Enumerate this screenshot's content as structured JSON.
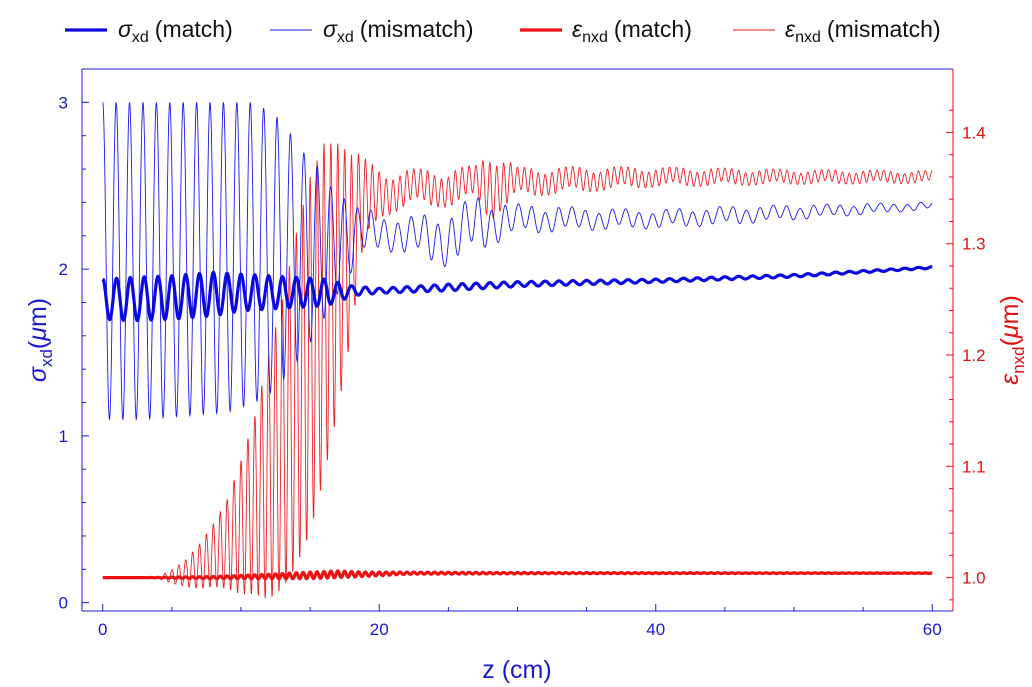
{
  "chart_data": {
    "type": "line",
    "xlabel": "z (cm)",
    "ylabel_left": {
      "sym": "σ",
      "sub": "xd",
      "rest": "(",
      "unit_sym": "μ",
      "unit_rest": "m)"
    },
    "ylabel_right": {
      "sym": "ε",
      "sub": "nxd",
      "rest": "(",
      "unit_sym": "μ",
      "unit_rest": "m)"
    },
    "xlim": [
      -1.5,
      61.5
    ],
    "ylim_left": [
      -0.05,
      3.2
    ],
    "ylim_right": [
      0.97,
      1.457
    ],
    "x_ticks": [
      "0",
      "20",
      "40",
      "60"
    ],
    "y_left_ticks": [
      "0",
      "1",
      "2",
      "3"
    ],
    "y_right_ticks": [
      "1.0",
      "1.1",
      "1.2",
      "1.3",
      "1.4"
    ],
    "colors": {
      "left_axis": "#1a1acc",
      "right_axis": "#e01010",
      "sigma": "#0a0ae0",
      "eps": "#ee1111"
    },
    "legend": [
      {
        "sym": "σ",
        "sub": "xd",
        "text": "(match)",
        "series": "sigma_match"
      },
      {
        "sym": "σ",
        "sub": "xd",
        "text": "(mismatch)",
        "series": "sigma_mismatch"
      },
      {
        "sym": "ε",
        "sub": "nxd",
        "text": "(match)",
        "series": "eps_match"
      },
      {
        "sym": "ε",
        "sub": "nxd",
        "text": "(mismatch)",
        "series": "eps_mismatch"
      }
    ],
    "series": [
      {
        "name": "sigma_match",
        "axis": "left",
        "color": "#0a0ae0",
        "thick": true,
        "x": [
          0,
          2,
          5,
          8,
          10,
          12,
          14,
          16,
          17,
          18,
          20,
          25,
          30,
          40,
          50,
          60
        ],
        "center": [
          1.82,
          1.82,
          1.83,
          1.85,
          1.86,
          1.86,
          1.86,
          1.86,
          1.86,
          1.87,
          1.87,
          1.89,
          1.91,
          1.93,
          1.96,
          2.01
        ],
        "amplitude": [
          0.12,
          0.13,
          0.13,
          0.13,
          0.11,
          0.1,
          0.09,
          0.08,
          0.06,
          0.03,
          0.015,
          0.02,
          0.015,
          0.01,
          0.008,
          0.005
        ],
        "period": 1.0
      },
      {
        "name": "sigma_mismatch",
        "axis": "left",
        "color": "#1a1aee",
        "thick": false,
        "x": [
          0,
          3,
          6,
          9,
          11,
          12.5,
          13.5,
          14.5,
          15.5,
          16.5,
          17.5,
          18.5,
          20,
          22,
          25,
          27,
          30,
          35,
          40,
          45,
          50,
          55,
          60
        ],
        "center": [
          2.05,
          2.05,
          2.06,
          2.07,
          2.1,
          2.1,
          2.1,
          2.1,
          2.12,
          2.14,
          2.17,
          2.2,
          2.23,
          2.2,
          2.18,
          2.27,
          2.3,
          2.3,
          2.3,
          2.32,
          2.34,
          2.36,
          2.38
        ],
        "amplitude": [
          0.95,
          0.95,
          0.94,
          0.93,
          0.9,
          0.82,
          0.72,
          0.6,
          0.5,
          0.35,
          0.25,
          0.15,
          0.1,
          0.1,
          0.15,
          0.15,
          0.08,
          0.06,
          0.05,
          0.05,
          0.04,
          0.03,
          0.02
        ],
        "period": 0.97
      },
      {
        "name": "eps_match",
        "axis": "right",
        "color": "#ee1111",
        "thick": true,
        "x": [
          0,
          3,
          5,
          8,
          12,
          15,
          17,
          19,
          22,
          30,
          40,
          50,
          60
        ],
        "center": [
          1.0,
          1.0,
          1.0,
          1.0,
          1.001,
          1.002,
          1.003,
          1.003,
          1.004,
          1.004,
          1.004,
          1.004,
          1.004
        ],
        "amplitude": [
          0.0,
          0.0,
          0.0005,
          0.001,
          0.002,
          0.003,
          0.003,
          0.002,
          0.001,
          0.0006,
          0.0004,
          0.0003,
          0.0002
        ],
        "period": 0.5
      },
      {
        "name": "eps_mismatch",
        "axis": "right",
        "color": "#ee2222",
        "thick": false,
        "x": [
          0,
          3,
          4,
          5,
          6,
          7,
          8,
          9,
          10,
          11,
          12,
          13,
          14,
          15,
          16,
          17,
          18,
          19,
          20,
          22,
          25,
          27,
          28,
          30,
          35,
          40,
          50,
          60
        ],
        "center": [
          1.0,
          1.0,
          1.0,
          1.001,
          1.004,
          1.01,
          1.02,
          1.03,
          1.045,
          1.065,
          1.09,
          1.12,
          1.16,
          1.2,
          1.24,
          1.27,
          1.3,
          1.33,
          1.345,
          1.35,
          1.35,
          1.355,
          1.355,
          1.355,
          1.358,
          1.36,
          1.36,
          1.36
        ],
        "amplitude": [
          0.0,
          0.0,
          0.001,
          0.006,
          0.012,
          0.02,
          0.028,
          0.04,
          0.06,
          0.08,
          0.11,
          0.13,
          0.15,
          0.16,
          0.15,
          0.12,
          0.08,
          0.04,
          0.02,
          0.015,
          0.015,
          0.014,
          0.03,
          0.012,
          0.01,
          0.008,
          0.006,
          0.005
        ],
        "period": 0.5
      }
    ]
  }
}
